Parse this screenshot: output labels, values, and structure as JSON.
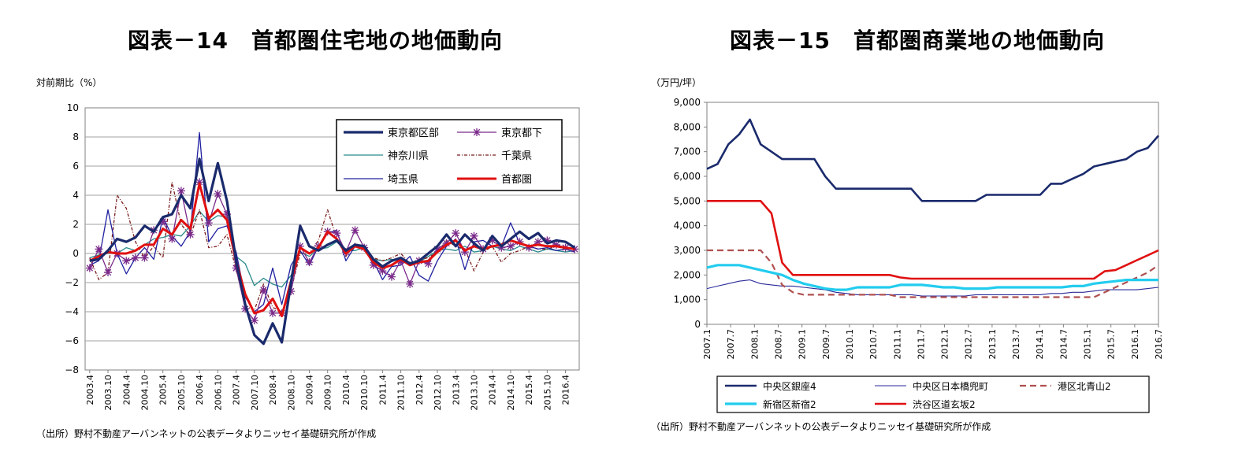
{
  "chart_data": [
    {
      "type": "line",
      "title": "図表－14　首都圏住宅地の地価動向",
      "ylabel": "対前期比（%）",
      "source": "（出所）野村不動産アーバンネットの公表データよりニッセイ基礎研究所が作成",
      "ylim": [
        -8,
        10
      ],
      "yticks": [
        "10",
        "8",
        "6",
        "4",
        "2",
        "0",
        "−2",
        "−4",
        "−6",
        "−8"
      ],
      "grid": true,
      "legend_position": "top-right",
      "x_labels": [
        "2003.4",
        "2003.10",
        "2004.4",
        "2004.10",
        "2005.4",
        "2005.10",
        "2006.4",
        "2006.10",
        "2007.4",
        "2007.10",
        "2008.4",
        "2008.10",
        "2009.4",
        "2009.10",
        "2010.4",
        "2010.10",
        "2011.4",
        "2011.10",
        "2012.4",
        "2012.10",
        "2013.4",
        "2013.10",
        "2014.4",
        "2014.10",
        "2015.4",
        "2015.10",
        "2016.4"
      ],
      "series": [
        {
          "name": "東京都区部",
          "color": "#1a2a6c",
          "width": 3.2,
          "marker": "",
          "values": [
            -0.5,
            -0.4,
            0.2,
            1.0,
            0.8,
            1.1,
            1.9,
            1.5,
            2.5,
            2.7,
            4.0,
            3.1,
            6.5,
            3.6,
            6.2,
            3.6,
            -0.5,
            -3.5,
            -5.6,
            -6.2,
            -4.8,
            -6.1,
            -2.0,
            1.9,
            0.5,
            0.2,
            0.6,
            0.9,
            0.2,
            0.6,
            0.5,
            -0.4,
            -0.9,
            -0.5,
            -0.3,
            -0.7,
            -0.5,
            0.0,
            0.5,
            1.3,
            0.5,
            1.3,
            0.7,
            0.2,
            1.2,
            0.5,
            1.0,
            1.5,
            1.0,
            1.4,
            0.7,
            0.9,
            0.8,
            0.4
          ]
        },
        {
          "name": "東京都下",
          "color": "#7a2a8a",
          "width": 1.3,
          "marker": "star",
          "values": [
            -1.0,
            0.3,
            -1.3,
            0.0,
            -0.5,
            -0.3,
            -0.3,
            1.6,
            2.2,
            1.0,
            4.3,
            1.3,
            4.9,
            2.1,
            4.1,
            2.7,
            -1.0,
            -3.8,
            -4.6,
            -2.5,
            -4.1,
            -4.1,
            -2.6,
            0.5,
            -0.6,
            0.5,
            1.5,
            1.4,
            0.1,
            1.6,
            0.4,
            -0.8,
            -1.2,
            -1.6,
            -0.5,
            -2.1,
            -0.5,
            -0.7,
            0.3,
            0.7,
            1.4,
            0.1,
            1.2,
            0.3,
            0.9,
            0.4,
            0.5,
            0.8,
            0.4,
            0.8,
            0.9,
            0.6,
            0.4,
            0.3
          ]
        },
        {
          "name": "神奈川県",
          "color": "#2a8a8a",
          "width": 1.3,
          "marker": "",
          "values": [
            -0.3,
            -0.1,
            0.0,
            0.0,
            0.4,
            0.2,
            0.6,
            1.0,
            1.1,
            1.3,
            1.2,
            1.9,
            2.9,
            2.2,
            2.6,
            2.5,
            -0.2,
            -0.7,
            -2.2,
            -1.7,
            -2.1,
            -2.3,
            -1.5,
            0.1,
            -0.2,
            0.3,
            0.4,
            0.8,
            0.2,
            0.2,
            0.4,
            -0.4,
            -0.5,
            -0.4,
            -0.5,
            -0.6,
            -0.6,
            -0.2,
            0.2,
            0.3,
            0.2,
            0.5,
            0.1,
            0.2,
            0.5,
            0.3,
            0.2,
            0.5,
            0.3,
            0.1,
            0.3,
            0.2,
            0.1,
            0.2
          ]
        },
        {
          "name": "千葉県",
          "color": "#7a1a1a",
          "width": 1.3,
          "dash": "4,2,1,2",
          "marker": "",
          "values": [
            -0.3,
            -1.8,
            -1.3,
            4.0,
            3.1,
            0.8,
            -0.3,
            0.5,
            -0.3,
            4.9,
            2.0,
            1.2,
            3.0,
            0.4,
            0.5,
            1.3,
            -1.1,
            -3.6,
            -3.9,
            -2.1,
            -3.7,
            -4.0,
            -2.5,
            0.0,
            0.0,
            0.9,
            3.0,
            1.0,
            -0.2,
            0.7,
            0.4,
            -0.3,
            -0.5,
            -0.3,
            0.0,
            -0.7,
            -0.4,
            -0.3,
            0.1,
            0.9,
            0.5,
            0.3,
            -1.2,
            0.1,
            0.5,
            -0.6,
            0.0,
            0.2,
            0.5,
            0.3,
            0.3,
            0.5,
            0.3,
            0.4
          ]
        },
        {
          "name": "埼玉県",
          "color": "#2020a0",
          "width": 1.3,
          "marker": "",
          "values": [
            -0.8,
            -0.5,
            3.0,
            0.0,
            -1.4,
            -0.3,
            0.4,
            -0.4,
            2.5,
            1.2,
            0.5,
            1.5,
            8.3,
            0.8,
            1.7,
            1.9,
            0.1,
            -3.0,
            -4.0,
            -3.5,
            -1.0,
            -3.5,
            -0.8,
            0.2,
            -0.8,
            0.5,
            1.4,
            1.6,
            -0.5,
            0.5,
            0.5,
            -0.5,
            -1.8,
            -0.9,
            -0.8,
            -0.2,
            -1.5,
            -1.9,
            -0.5,
            0.5,
            1.0,
            -1.1,
            0.8,
            0.9,
            0.5,
            0.5,
            2.1,
            0.7,
            0.5,
            0.3,
            0.4,
            0.2,
            0.3,
            0.1
          ]
        },
        {
          "name": "首都圏",
          "color": "#e01010",
          "width": 3.0,
          "marker": "",
          "values": [
            -0.5,
            -0.2,
            0.1,
            0.0,
            0.0,
            0.2,
            0.6,
            0.6,
            1.7,
            1.3,
            2.3,
            1.7,
            4.8,
            2.4,
            3.0,
            2.3,
            -0.5,
            -2.8,
            -4.1,
            -3.9,
            -3.1,
            -4.3,
            -1.9,
            0.4,
            0.0,
            0.4,
            1.5,
            1.0,
            0.0,
            0.5,
            0.3,
            -0.6,
            -1.0,
            -0.8,
            -0.4,
            -0.8,
            -0.6,
            -0.5,
            0.1,
            0.6,
            0.9,
            0.2,
            0.5,
            0.3,
            0.5,
            0.6,
            0.9,
            0.7,
            0.5,
            0.6,
            0.5,
            0.5,
            0.4,
            0.3
          ]
        }
      ]
    },
    {
      "type": "line",
      "title": "図表－15　首都圏商業地の地価動向",
      "ylabel": "（万円/坪）",
      "source": "（出所）野村不動産アーバンネットの公表データよりニッセイ基礎研究所が作成",
      "ylim": [
        0,
        9000
      ],
      "yticks": [
        "9,000",
        "8,000",
        "7,000",
        "6,000",
        "5,000",
        "4,000",
        "3,000",
        "2,000",
        "1,000",
        "0"
      ],
      "grid": false,
      "legend_position": "bottom",
      "x_labels": [
        "2007.1",
        "2007.7",
        "2008.1",
        "2008.7",
        "2009.1",
        "2009.7",
        "2010.1",
        "2010.7",
        "2011.1",
        "2011.7",
        "2012.1",
        "2012.7",
        "2013.1",
        "2013.7",
        "2014.1",
        "2014.7",
        "2015.1",
        "2015.7",
        "2016.1",
        "2016.7"
      ],
      "series": [
        {
          "name": "中央区銀座4",
          "color": "#1a2a6c",
          "width": 2.6,
          "dash": "",
          "values": [
            6300,
            6500,
            7300,
            7700,
            8300,
            7300,
            7000,
            6700,
            6700,
            6700,
            6700,
            6000,
            5500,
            5500,
            5500,
            5500,
            5500,
            5500,
            5500,
            5500,
            5000,
            5000,
            5000,
            5000,
            5000,
            5000,
            5250,
            5250,
            5250,
            5250,
            5250,
            5250,
            5700,
            5700,
            5900,
            6100,
            6400,
            6500,
            6600,
            6700,
            7000,
            7150,
            7650
          ]
        },
        {
          "name": "中央区日本橋兜町",
          "color": "#2a2a9a",
          "width": 1.1,
          "dash": "",
          "values": [
            1450,
            1550,
            1650,
            1750,
            1800,
            1650,
            1600,
            1550,
            1550,
            1500,
            1450,
            1400,
            1300,
            1250,
            1200,
            1200,
            1200,
            1200,
            1200,
            1200,
            1150,
            1150,
            1150,
            1150,
            1150,
            1200,
            1200,
            1200,
            1200,
            1200,
            1200,
            1200,
            1250,
            1250,
            1300,
            1300,
            1350,
            1400,
            1400,
            1400,
            1400,
            1450,
            1500
          ]
        },
        {
          "name": "港区北青山2",
          "color": "#b05050",
          "width": 2.2,
          "dash": "8,5",
          "values": [
            3000,
            3000,
            3000,
            3000,
            3000,
            3000,
            2500,
            1600,
            1300,
            1200,
            1200,
            1200,
            1200,
            1200,
            1200,
            1200,
            1200,
            1200,
            1100,
            1100,
            1100,
            1100,
            1100,
            1100,
            1100,
            1100,
            1100,
            1100,
            1100,
            1100,
            1100,
            1100,
            1100,
            1100,
            1100,
            1100,
            1100,
            1300,
            1500,
            1700,
            1900,
            2100,
            2400
          ]
        },
        {
          "name": "新宿区新宿2",
          "color": "#22ccee",
          "width": 3.2,
          "dash": "",
          "values": [
            2300,
            2400,
            2400,
            2400,
            2300,
            2200,
            2100,
            2000,
            1800,
            1650,
            1550,
            1450,
            1400,
            1400,
            1500,
            1500,
            1500,
            1500,
            1600,
            1600,
            1600,
            1550,
            1500,
            1500,
            1450,
            1450,
            1450,
            1500,
            1500,
            1500,
            1500,
            1500,
            1500,
            1500,
            1550,
            1550,
            1650,
            1700,
            1750,
            1800,
            1800,
            1800,
            1800
          ]
        },
        {
          "name": "渋谷区道玄坂2",
          "color": "#e01010",
          "width": 2.6,
          "dash": "",
          "values": [
            5000,
            5000,
            5000,
            5000,
            5000,
            5000,
            4500,
            2500,
            2000,
            2000,
            2000,
            2000,
            2000,
            2000,
            2000,
            2000,
            2000,
            2000,
            1900,
            1850,
            1850,
            1850,
            1850,
            1850,
            1850,
            1850,
            1850,
            1850,
            1850,
            1850,
            1850,
            1850,
            1850,
            1850,
            1850,
            1850,
            1850,
            2150,
            2200,
            2400,
            2600,
            2800,
            3000
          ]
        }
      ]
    }
  ]
}
